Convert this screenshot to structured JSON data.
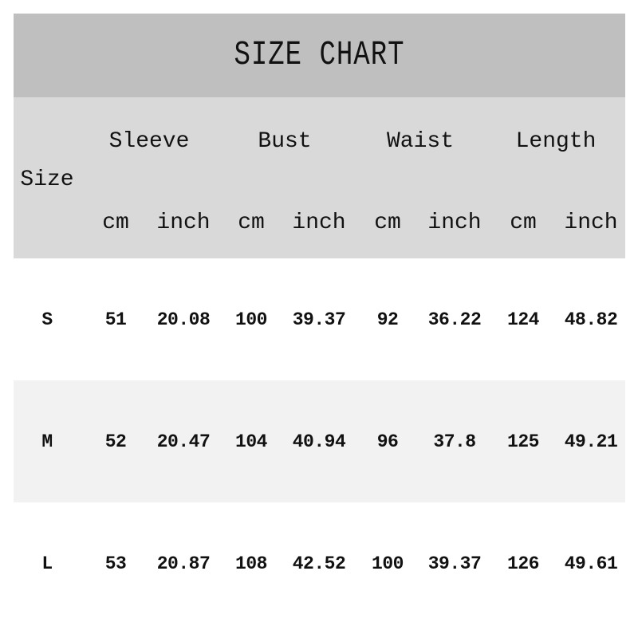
{
  "title": "SIZE CHART",
  "header": {
    "size_label": "Size",
    "groups": [
      "Sleeve",
      "Bust",
      "Waist",
      "Length"
    ],
    "units": [
      "cm",
      "inch",
      "cm",
      "inch",
      "cm",
      "inch",
      "cm",
      "inch"
    ]
  },
  "rows": [
    {
      "size": "S",
      "values": [
        "51",
        "20.08",
        "100",
        "39.37",
        "92",
        "36.22",
        "124",
        "48.82"
      ]
    },
    {
      "size": "M",
      "values": [
        "52",
        "20.47",
        "104",
        "40.94",
        "96",
        "37.8",
        "125",
        "49.21"
      ]
    },
    {
      "size": "L",
      "values": [
        "53",
        "20.87",
        "108",
        "42.52",
        "100",
        "39.37",
        "126",
        "49.61"
      ]
    }
  ],
  "colors": {
    "title_band": "#bfbfbf",
    "header_band": "#d9d9d9",
    "alt_row": "#f2f2f2"
  }
}
